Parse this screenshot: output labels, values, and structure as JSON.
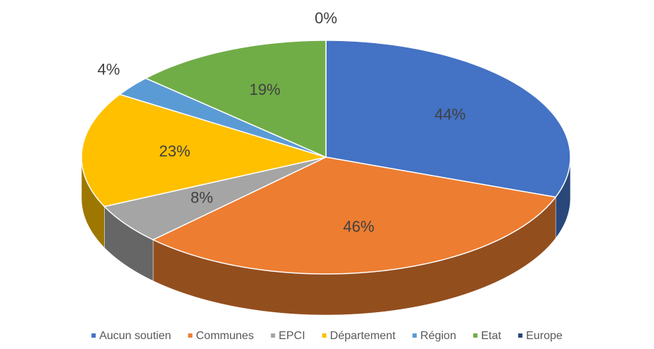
{
  "chart_data": {
    "type": "pie3d",
    "categories": [
      "Aucun soutien",
      "Communes",
      "EPCI",
      "Département",
      "Région",
      "Etat",
      "Europe"
    ],
    "values": [
      44,
      46,
      8,
      23,
      4,
      19,
      0
    ],
    "value_labels": [
      "44%",
      "46%",
      "8%",
      "23%",
      "4%",
      "19%",
      "0%"
    ],
    "colors": [
      "#4472c4",
      "#ed7d31",
      "#a5a5a5",
      "#ffc000",
      "#5b9bd5",
      "#70ad47",
      "#264478"
    ],
    "legend": "bottom"
  }
}
